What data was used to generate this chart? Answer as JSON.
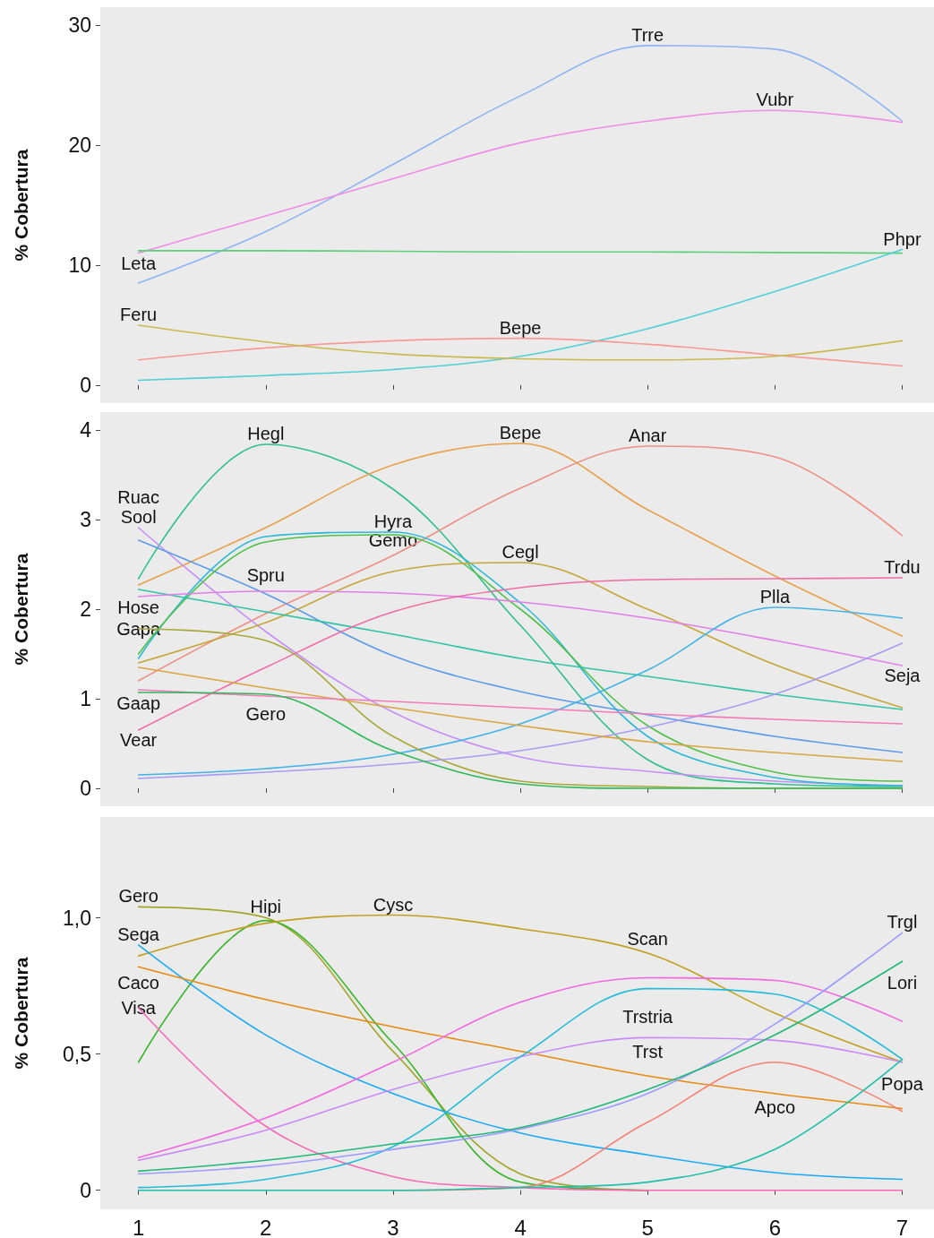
{
  "chart_data": [
    {
      "type": "line",
      "ylabel": "% Cobertura",
      "x": [
        1,
        2,
        3,
        4,
        5,
        6,
        7
      ],
      "xlim": [
        0.7,
        7.25
      ],
      "xticks": [
        1,
        2,
        3,
        4,
        5,
        6,
        7
      ],
      "ylim": [
        -1.5,
        31.5
      ],
      "yticks": [
        0,
        10,
        20,
        30
      ],
      "grid": false,
      "tick_labels": "y",
      "series": [
        {
          "color": "#8fb2f5",
          "values": [
            8.5,
            12.8,
            18.4,
            24.1,
            28.3,
            28.0,
            22.0
          ]
        },
        {
          "color": "#f08ce6",
          "values": [
            11.0,
            14.1,
            17.2,
            20.2,
            22.0,
            22.9,
            21.9
          ]
        },
        {
          "color": "#5ccf78",
          "values": [
            11.2,
            11.2,
            11.15,
            11.1,
            11.1,
            11.05,
            11.0
          ]
        },
        {
          "color": "#4fd0d4",
          "values": [
            0.4,
            0.8,
            1.3,
            2.4,
            4.7,
            7.8,
            11.3
          ]
        },
        {
          "color": "#f59a94",
          "values": [
            2.1,
            3.1,
            3.7,
            3.9,
            3.4,
            2.5,
            1.6
          ]
        },
        {
          "color": "#c9b94f",
          "values": [
            5.0,
            3.6,
            2.6,
            2.2,
            2.1,
            2.4,
            3.7
          ]
        }
      ],
      "annotations": [
        {
          "text": "Trre",
          "x": 5,
          "y": 28.3
        },
        {
          "text": "Vubr",
          "x": 6,
          "y": 22.9
        },
        {
          "text": "Leta",
          "x": 1,
          "y": 11.2
        },
        {
          "text": "Phpr",
          "x": 7,
          "y": 11.3
        },
        {
          "text": "Feru",
          "x": 1,
          "y": 5.0
        },
        {
          "text": "Bepe",
          "x": 4,
          "y": 3.9
        }
      ]
    },
    {
      "type": "line",
      "ylabel": "% Cobertura",
      "x": [
        1,
        2,
        3,
        4,
        5,
        6,
        7
      ],
      "xlim": [
        0.7,
        7.25
      ],
      "xticks": [
        1,
        2,
        3,
        4,
        5,
        6,
        7
      ],
      "ylim": [
        -0.2,
        4.2
      ],
      "yticks": [
        0,
        1,
        2,
        3,
        4
      ],
      "grid": false,
      "tick_labels": "y",
      "series": [
        {
          "color": "#2fbf8f",
          "values": [
            2.34,
            3.84,
            3.34,
            1.82,
            0.32,
            0.05,
            0.02
          ]
        },
        {
          "color": "#e8a04a",
          "values": [
            2.27,
            2.91,
            3.61,
            3.85,
            3.11,
            2.37,
            1.7
          ]
        },
        {
          "color": "#ee8f86",
          "values": [
            1.2,
            1.95,
            2.6,
            3.35,
            3.82,
            3.7,
            2.82
          ]
        },
        {
          "color": "#c58ef5",
          "values": [
            2.91,
            1.75,
            0.85,
            0.35,
            0.19,
            0.08,
            0.03
          ]
        },
        {
          "color": "#5b9be8",
          "values": [
            2.77,
            2.17,
            1.48,
            1.08,
            0.82,
            0.58,
            0.4
          ]
        },
        {
          "color": "#2bb8d6",
          "values": [
            1.45,
            2.81,
            2.86,
            2.07,
            0.58,
            0.12,
            0.03
          ]
        },
        {
          "color": "#4fc04a",
          "values": [
            1.5,
            2.75,
            2.83,
            2.0,
            0.7,
            0.18,
            0.08
          ]
        },
        {
          "color": "#c4a63a",
          "values": [
            1.4,
            1.85,
            2.42,
            2.52,
            2.0,
            1.38,
            0.9
          ]
        },
        {
          "color": "#2fc2a5",
          "values": [
            2.22,
            1.97,
            1.72,
            1.45,
            1.25,
            1.05,
            0.88
          ]
        },
        {
          "color": "#e07ee8",
          "values": [
            2.14,
            2.2,
            2.18,
            2.08,
            1.9,
            1.65,
            1.37
          ]
        },
        {
          "color": "#f06ca6",
          "values": [
            0.65,
            1.35,
            1.97,
            2.24,
            2.33,
            2.34,
            2.35
          ]
        },
        {
          "color": "#3fb3e6",
          "values": [
            0.15,
            0.22,
            0.38,
            0.72,
            1.32,
            2.02,
            1.9
          ]
        },
        {
          "color": "#a8a83a",
          "values": [
            1.78,
            1.65,
            0.58,
            0.08,
            0.02,
            0,
            0
          ]
        },
        {
          "color": "#a89cf2",
          "values": [
            0.11,
            0.18,
            0.27,
            0.42,
            0.68,
            1.05,
            1.62
          ]
        },
        {
          "color": "#d9a540",
          "values": [
            1.35,
            1.12,
            0.9,
            0.7,
            0.52,
            0.4,
            0.3
          ]
        },
        {
          "color": "#f27ab8",
          "values": [
            1.1,
            1.03,
            0.97,
            0.9,
            0.83,
            0.77,
            0.72
          ]
        },
        {
          "color": "#2fb85a",
          "values": [
            1.07,
            1.05,
            0.42,
            0.05,
            0,
            0,
            0
          ]
        }
      ],
      "annotations": [
        {
          "text": "Hegl",
          "x": 2,
          "y": 3.84
        },
        {
          "text": "Bepe",
          "x": 4,
          "y": 3.85
        },
        {
          "text": "Anar",
          "x": 5,
          "y": 3.82
        },
        {
          "text": "Sool",
          "x": 1,
          "y": 2.91
        },
        {
          "text": "Ruac",
          "x": 1,
          "y": 2.77
        },
        {
          "text": "Hyra",
          "x": 3,
          "y": 2.86
        },
        {
          "text": "Gemo",
          "x": 3,
          "y": 2.83
        },
        {
          "text": "Cegl",
          "x": 4,
          "y": 2.52
        },
        {
          "text": "Hose",
          "x": 1,
          "y": 2.22
        },
        {
          "text": "Spru",
          "x": 2,
          "y": 2.2
        },
        {
          "text": "Trdu",
          "x": 7,
          "y": 2.35
        },
        {
          "text": "Plla",
          "x": 6,
          "y": 2.02
        },
        {
          "text": "Gapa",
          "x": 1,
          "y": 1.78
        },
        {
          "text": "Seja",
          "x": 7,
          "y": 1.62
        },
        {
          "text": "Gaap",
          "x": 1,
          "y": 1.35
        },
        {
          "text": "Vear",
          "x": 1,
          "y": 1.1
        },
        {
          "text": "Gero",
          "x": 2,
          "y": 1.05
        }
      ]
    },
    {
      "type": "line",
      "ylabel": "% Cobertura",
      "x": [
        1,
        2,
        3,
        4,
        5,
        6,
        7
      ],
      "xlim": [
        0.7,
        7.25
      ],
      "xticks": [
        1,
        2,
        3,
        4,
        5,
        6,
        7
      ],
      "ylim": [
        -0.07,
        1.37
      ],
      "yticks": [
        {
          "value": 0,
          "label": "0"
        },
        {
          "value": 0.5,
          "label": "0,5"
        },
        {
          "value": 1,
          "label": "1,0"
        }
      ],
      "grid": false,
      "series": [
        {
          "color": "#a3a52a",
          "x": [
            1,
            2,
            3,
            4,
            5
          ],
          "values": [
            1.04,
            1.0,
            0.51,
            0.06,
            0
          ]
        },
        {
          "color": "#39b62a",
          "x": [
            1,
            2,
            3,
            4,
            5
          ],
          "values": [
            0.47,
            0.99,
            0.54,
            0.03,
            0
          ]
        },
        {
          "color": "#c0a020",
          "values": [
            0.86,
            0.98,
            1.01,
            0.96,
            0.87,
            0.65,
            0.47
          ]
        },
        {
          "color": "#1aa9f5",
          "values": [
            0.9,
            0.57,
            0.355,
            0.21,
            0.13,
            0.065,
            0.04
          ]
        },
        {
          "color": "#e58a10",
          "values": [
            0.82,
            0.7,
            0.6,
            0.51,
            0.42,
            0.355,
            0.3
          ]
        },
        {
          "color": "#f76ab5",
          "values": [
            0.67,
            0.235,
            0.05,
            0.01,
            0,
            0,
            0
          ]
        },
        {
          "color": "#f266e0",
          "values": [
            0.12,
            0.265,
            0.47,
            0.69,
            0.78,
            0.77,
            0.62
          ]
        },
        {
          "color": "#c98af7",
          "values": [
            0.11,
            0.22,
            0.37,
            0.49,
            0.56,
            0.55,
            0.47
          ]
        },
        {
          "color": "#22bcd8",
          "values": [
            0.01,
            0.04,
            0.16,
            0.49,
            0.74,
            0.72,
            0.48
          ]
        },
        {
          "color": "#9d9aff",
          "values": [
            0.06,
            0.09,
            0.15,
            0.225,
            0.355,
            0.61,
            0.945
          ]
        },
        {
          "color": "#20b878",
          "values": [
            0.07,
            0.11,
            0.17,
            0.23,
            0.37,
            0.57,
            0.84
          ]
        },
        {
          "color": "#f57f72",
          "x": [
            3,
            4,
            5,
            6,
            7
          ],
          "values": [
            0,
            0.01,
            0.25,
            0.47,
            0.29
          ]
        },
        {
          "color": "#1fbfa8",
          "values": [
            0,
            0,
            0,
            0.01,
            0.03,
            0.15,
            0.48
          ]
        }
      ],
      "annotations": [
        {
          "text": "Gero",
          "x": 1,
          "y": 1.04
        },
        {
          "text": "Hipi",
          "x": 2,
          "y": 0.99
        },
        {
          "text": "Cysc",
          "x": 3,
          "y": 1.01
        },
        {
          "text": "Sega",
          "x": 1,
          "y": 0.9
        },
        {
          "text": "Caco",
          "x": 1,
          "y": 0.82
        },
        {
          "text": "Visa",
          "x": 1,
          "y": 0.67
        },
        {
          "text": "Trstria",
          "x": 5,
          "y": 0.78
        },
        {
          "text": "Scan",
          "x": 5,
          "y": 0.74
        },
        {
          "text": "Trst",
          "x": 5,
          "y": 0.56
        },
        {
          "text": "Apco",
          "x": 6,
          "y": 0.47
        },
        {
          "text": "Trgl",
          "x": 7,
          "y": 0.945
        },
        {
          "text": "Lori",
          "x": 7,
          "y": 0.84
        },
        {
          "text": "Popa",
          "x": 7,
          "y": 0.47
        }
      ]
    }
  ]
}
